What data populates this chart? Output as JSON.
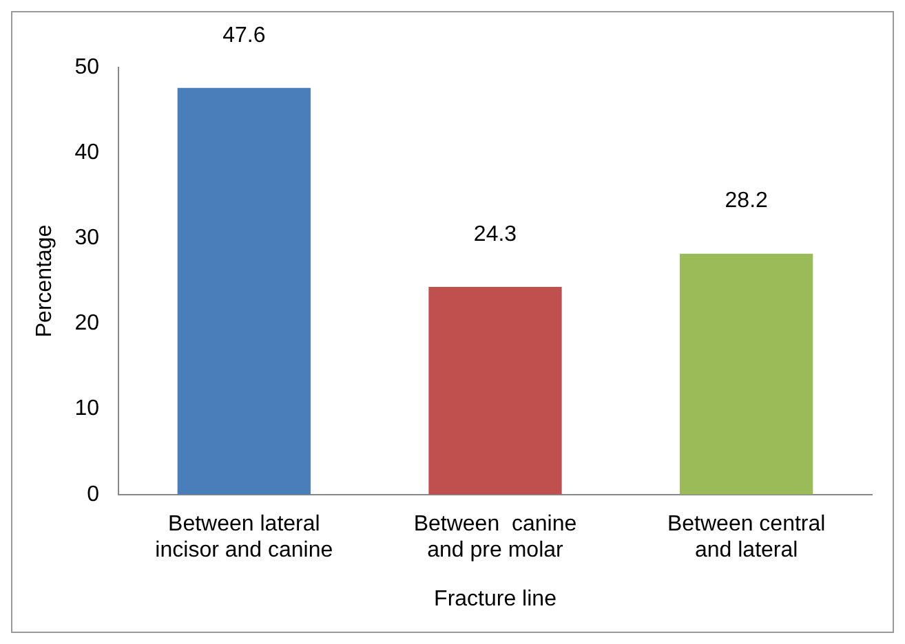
{
  "chart_data": {
    "type": "bar",
    "xlabel": "Fracture line",
    "ylabel": "Percentage",
    "categories": [
      "Between lateral incisor and canine",
      "Between  canine and pre molar",
      "Between central and lateral"
    ],
    "values": [
      47.6,
      24.3,
      28.2
    ],
    "colors": [
      "#4a7ebb",
      "#c0504d",
      "#9bbb59"
    ],
    "ylim": [
      0,
      50
    ],
    "yticks": [
      0,
      10,
      20,
      30,
      40,
      50
    ],
    "grid": false,
    "legend": false,
    "data_labels": true
  }
}
